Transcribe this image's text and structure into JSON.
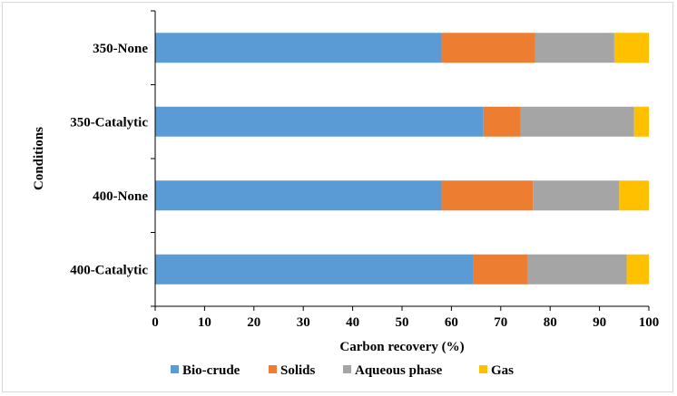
{
  "chart_data": {
    "type": "bar",
    "orientation": "horizontal",
    "stacked": true,
    "xlabel": "Carbon recovery (%)",
    "ylabel": "Conditions",
    "xlim": [
      0,
      100
    ],
    "xticks": [
      0,
      10,
      20,
      30,
      40,
      50,
      60,
      70,
      80,
      90,
      100
    ],
    "grid": false,
    "legend_position": "bottom",
    "categories": [
      "350-None",
      "350-Catalytic",
      "400-None",
      "400-Catalytic"
    ],
    "series": [
      {
        "name": "Bio-crude",
        "color": "#5b9bd5",
        "values": [
          58,
          66.5,
          58,
          64.5
        ]
      },
      {
        "name": "Solids",
        "color": "#ed7d31",
        "values": [
          19,
          7.5,
          18.5,
          11
        ]
      },
      {
        "name": "Aqueous phase",
        "color": "#a5a5a5",
        "values": [
          16,
          23,
          17.5,
          20
        ]
      },
      {
        "name": "Gas",
        "color": "#ffc000",
        "values": [
          7,
          3,
          6,
          4.5
        ]
      }
    ]
  }
}
